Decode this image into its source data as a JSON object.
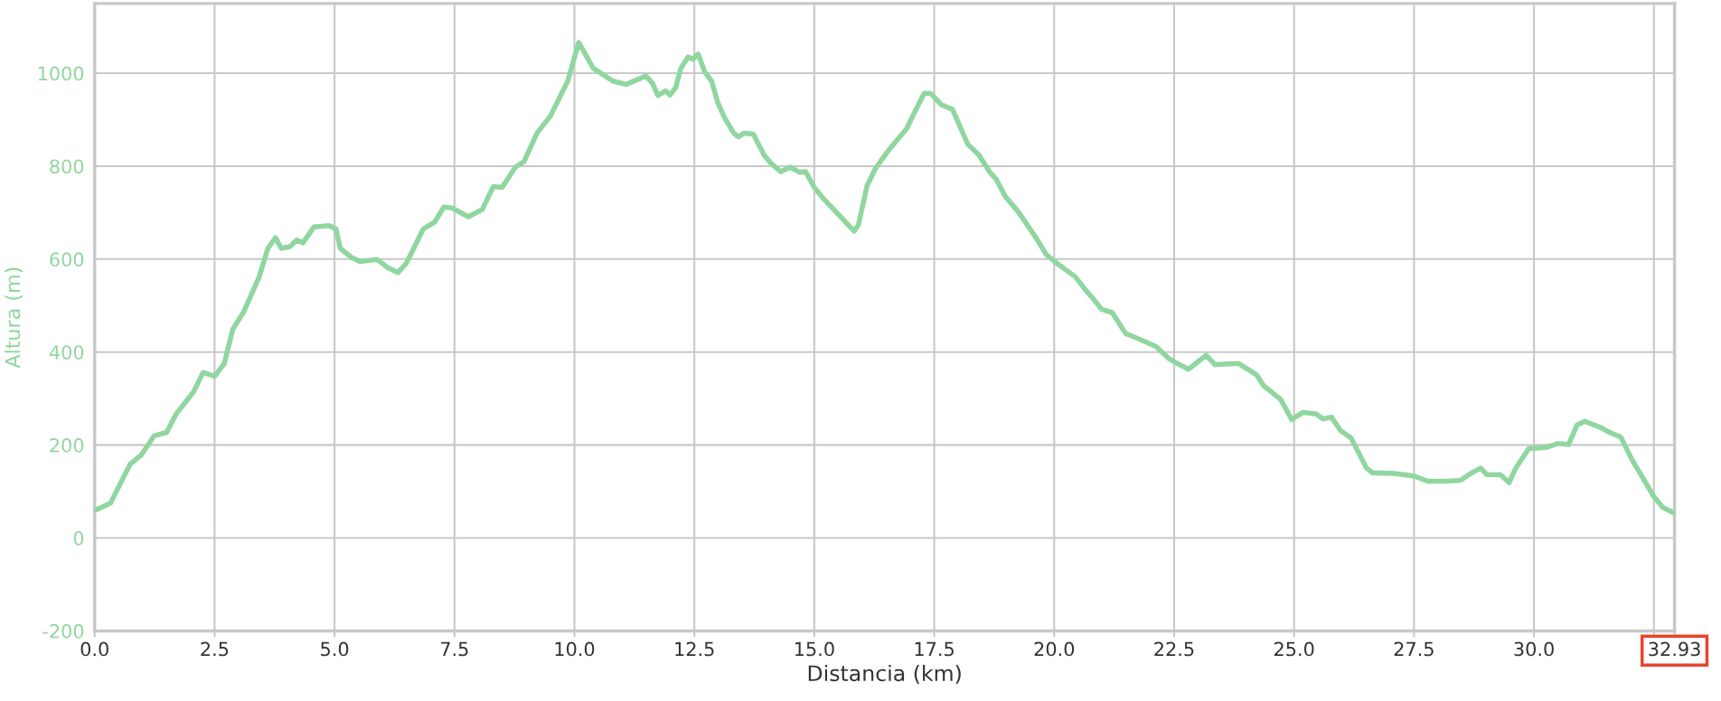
{
  "chart_data": {
    "type": "line",
    "xlabel": "Distancia (km)",
    "ylabel": "Altura (m)",
    "xlim": [
      0,
      32.93
    ],
    "ylim": [
      -200,
      1150
    ],
    "xticks": [
      {
        "value": 0,
        "label": "0.0"
      },
      2.5,
      {
        "value": 5,
        "label": "5.0"
      },
      7.5,
      {
        "value": 10,
        "label": "10.0"
      },
      12.5,
      {
        "value": 15,
        "label": "15.0"
      },
      17.5,
      {
        "value": 20,
        "label": "20.0"
      },
      22.5,
      {
        "value": 25,
        "label": "25.0"
      },
      27.5,
      {
        "value": 30,
        "label": "30.0"
      },
      {
        "value": 32.5,
        "label": null
      },
      32.93
    ],
    "yticks": [
      -200,
      0,
      200,
      400,
      600,
      800,
      1000
    ],
    "grid": true,
    "marker": "none",
    "line_style": "solid",
    "series": [
      {
        "color": "#90d6a0",
        "x": [
          0.04,
          0.33,
          0.51,
          0.74,
          0.97,
          1.24,
          1.5,
          1.7,
          2.06,
          2.26,
          2.5,
          2.7,
          2.88,
          3.11,
          3.43,
          3.61,
          3.77,
          3.89,
          4.07,
          4.21,
          4.34,
          4.57,
          4.89,
          5.03,
          5.12,
          5.35,
          5.53,
          5.89,
          6.12,
          6.32,
          6.49,
          6.85,
          7.08,
          7.28,
          7.45,
          7.79,
          8.08,
          8.31,
          8.49,
          8.77,
          8.95,
          9.22,
          9.5,
          9.86,
          10.09,
          10.39,
          10.8,
          11.08,
          11.49,
          11.63,
          11.74,
          11.9,
          11.99,
          12.11,
          12.22,
          12.37,
          12.47,
          12.58,
          12.72,
          12.86,
          12.99,
          13.13,
          13.32,
          13.42,
          13.54,
          13.73,
          13.95,
          14.09,
          14.3,
          14.5,
          14.69,
          14.82,
          15.0,
          15.19,
          15.55,
          15.83,
          15.92,
          16.1,
          16.28,
          16.51,
          16.69,
          16.92,
          17.1,
          17.29,
          17.42,
          17.65,
          17.88,
          18.06,
          18.2,
          18.43,
          18.66,
          18.79,
          18.98,
          19.25,
          19.62,
          19.84,
          20.07,
          20.44,
          20.62,
          20.85,
          20.99,
          21.21,
          21.49,
          21.7,
          22.12,
          22.39,
          22.57,
          22.8,
          23.03,
          23.17,
          23.35,
          23.76,
          23.85,
          24.22,
          24.36,
          24.72,
          24.95,
          25.18,
          25.46,
          25.6,
          25.78,
          25.96,
          26.19,
          26.51,
          26.64,
          27.06,
          27.51,
          27.79,
          28.15,
          28.47,
          28.7,
          28.89,
          29.02,
          29.3,
          29.48,
          29.62,
          29.89,
          30.26,
          30.49,
          30.72,
          30.9,
          31.06,
          31.36,
          31.58,
          31.81,
          32.04,
          32.5,
          32.68,
          32.93
        ],
        "values": [
          61,
          75,
          112,
          159,
          178,
          220,
          227,
          267,
          314,
          356,
          348,
          375,
          449,
          487,
          562,
          623,
          646,
          623,
          627,
          641,
          635,
          669,
          672,
          665,
          623,
          604,
          595,
          599,
          581,
          571,
          590,
          665,
          679,
          712,
          710,
          691,
          707,
          756,
          754,
          798,
          810,
          871,
          908,
          983,
          1066,
          1011,
          983,
          976,
          994,
          978,
          952,
          962,
          953,
          969,
          1011,
          1035,
          1030,
          1041,
          1002,
          983,
          936,
          904,
          871,
          863,
          871,
          869,
          824,
          807,
          788,
          798,
          787,
          788,
          754,
          730,
          691,
          660,
          674,
          758,
          796,
          829,
          852,
          880,
          918,
          957,
          957,
          932,
          922,
          880,
          847,
          824,
          787,
          772,
          735,
          702,
          646,
          609,
          590,
          562,
          538,
          510,
          492,
          485,
          440,
          431,
          412,
          386,
          375,
          363,
          382,
          393,
          373,
          375,
          375,
          351,
          328,
          298,
          255,
          270,
          267,
          256,
          260,
          232,
          215,
          150,
          140,
          139,
          133,
          122,
          122,
          124,
          140,
          150,
          136,
          136,
          119,
          150,
          192,
          195,
          203,
          201,
          243,
          251,
          239,
          227,
          217,
          169,
          89,
          66,
          53
        ]
      }
    ]
  }
}
